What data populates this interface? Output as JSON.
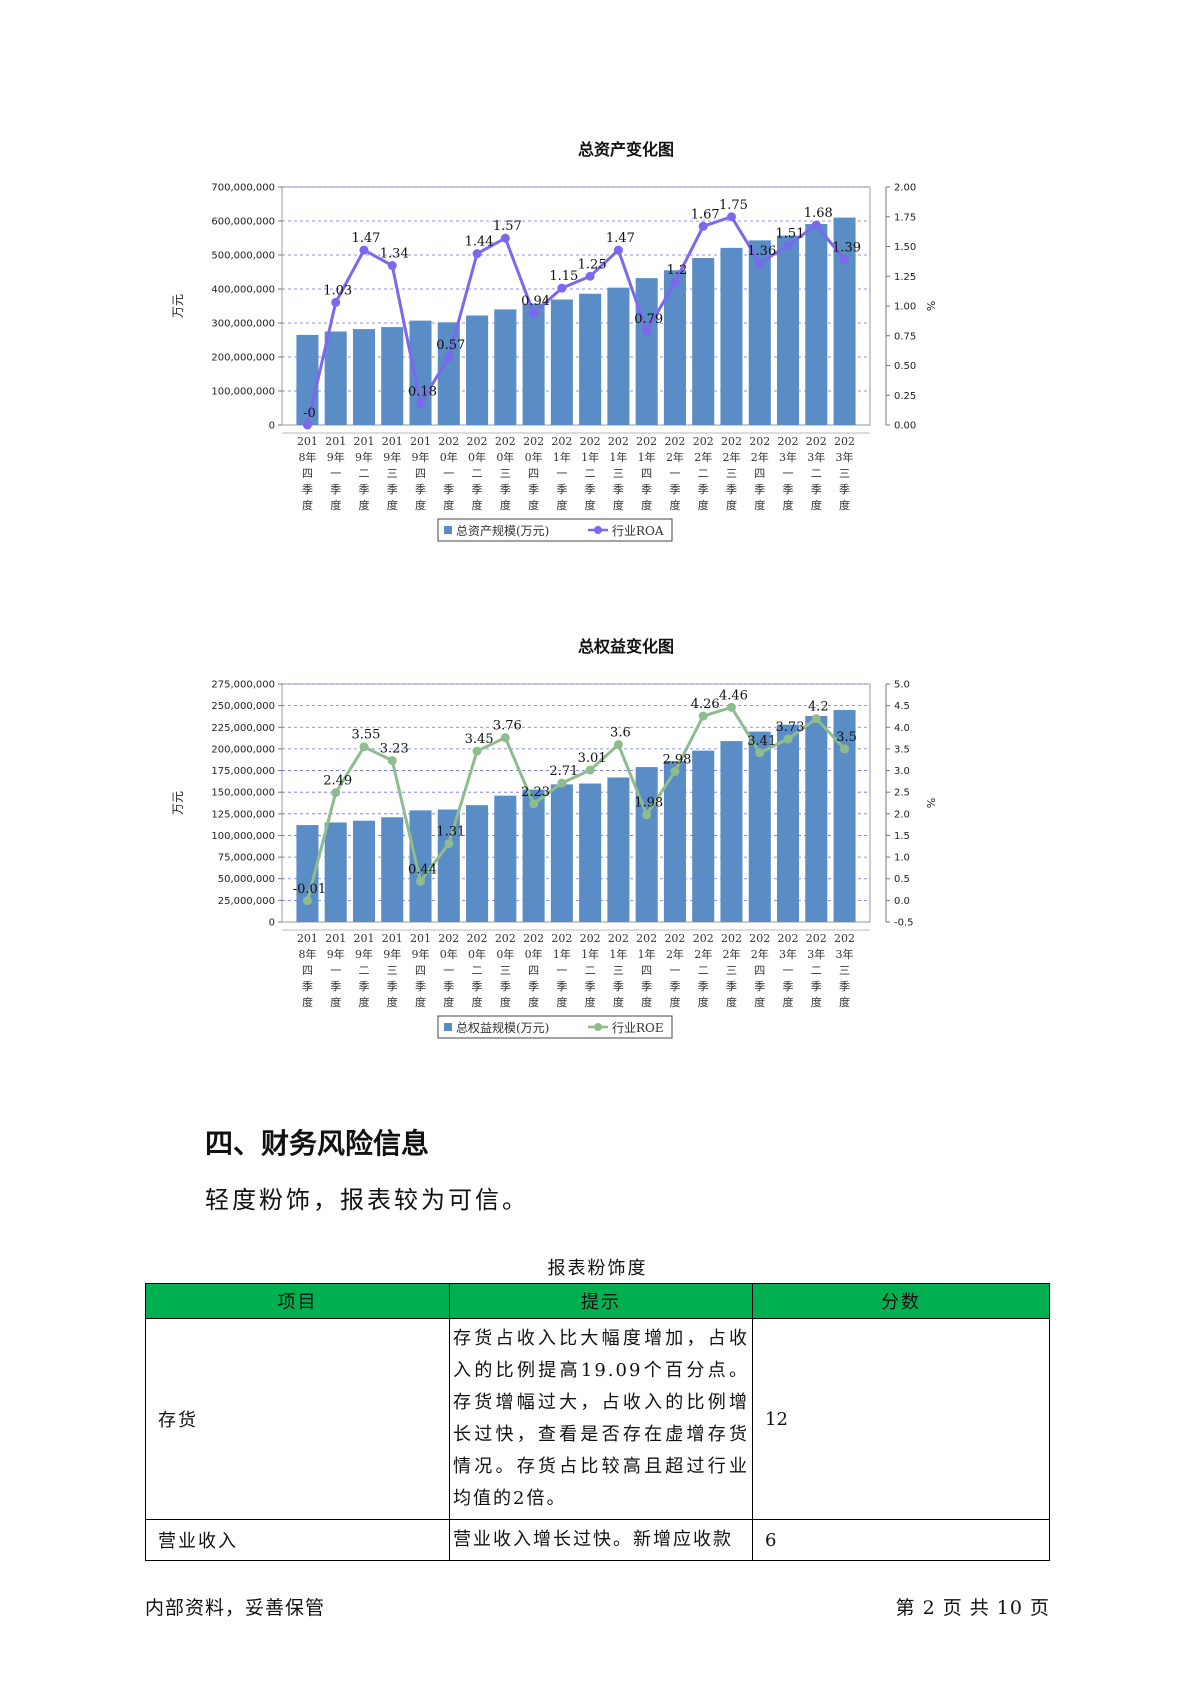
{
  "chart_data": [
    {
      "type": "bar",
      "title": "总资产变化图",
      "ylabel": "万元",
      "y2label": "%",
      "ylim": [
        0,
        700000000
      ],
      "y2lim": [
        0,
        2
      ],
      "y_ticks": [
        "0",
        "100,000,000",
        "200,000,000",
        "300,000,000",
        "400,000,000",
        "500,000,000",
        "600,000,000",
        "700,000,000"
      ],
      "y2_ticks": [
        "0.00",
        "0.25",
        "0.50",
        "0.75",
        "1.00",
        "1.25",
        "1.50",
        "1.75",
        "2.00"
      ],
      "categories": [
        "2018年四季度",
        "2019年一季度",
        "2019年二季度",
        "2019年三季度",
        "2019年四季度",
        "2020年一季度",
        "2020年二季度",
        "2020年三季度",
        "2020年四季度",
        "2021年一季度",
        "2021年二季度",
        "2021年三季度",
        "2021年四季度",
        "2022年一季度",
        "2022年二季度",
        "2022年三季度",
        "2022年四季度",
        "2023年一季度",
        "2023年二季度",
        "2023年三季度"
      ],
      "grid": true,
      "legend_placement": "bottom",
      "series": [
        {
          "name": "总资产规模(万元)",
          "type": "bar",
          "axis": "left",
          "color": "#5a8cc5",
          "values": [
            265000000,
            275000000,
            282000000,
            288000000,
            307000000,
            302000000,
            322000000,
            340000000,
            357000000,
            369000000,
            386000000,
            404000000,
            432000000,
            455000000,
            491000000,
            521000000,
            543000000,
            557000000,
            591000000,
            610000000
          ]
        },
        {
          "name": "行业ROA",
          "type": "line",
          "axis": "right",
          "color": "#7b68ee",
          "values": [
            0,
            1.03,
            1.47,
            1.34,
            0.18,
            0.57,
            1.44,
            1.57,
            0.94,
            1.15,
            1.25,
            1.47,
            0.79,
            1.2,
            1.67,
            1.75,
            1.36,
            1.51,
            1.68,
            1.39
          ],
          "labels": [
            "-0",
            "1.03",
            "1.47",
            "1.34",
            "0.18",
            "0.57",
            "1.44",
            "1.57",
            "0.94",
            "1.15",
            "1.25",
            "1.47",
            "0.79",
            "1.2",
            "1.67",
            "1.75",
            "1.36",
            "1.51",
            "1.68",
            "1.39"
          ]
        }
      ]
    },
    {
      "type": "bar",
      "title": "总权益变化图",
      "ylabel": "万元",
      "y2label": "%",
      "ylim": [
        0,
        275000000
      ],
      "y2lim": [
        -0.5,
        5
      ],
      "y_ticks": [
        "0",
        "25,000,000",
        "50,000,000",
        "75,000,000",
        "100,000,000",
        "125,000,000",
        "150,000,000",
        "175,000,000",
        "200,000,000",
        "225,000,000",
        "250,000,000",
        "275,000,000"
      ],
      "y2_ticks": [
        "-0.5",
        "0.0",
        "0.5",
        "1.0",
        "1.5",
        "2.0",
        "2.5",
        "3.0",
        "3.5",
        "4.0",
        "4.5",
        "5.0"
      ],
      "categories": [
        "2018年四季度",
        "2019年一季度",
        "2019年二季度",
        "2019年三季度",
        "2019年四季度",
        "2020年一季度",
        "2020年二季度",
        "2020年三季度",
        "2020年四季度",
        "2021年一季度",
        "2021年二季度",
        "2021年三季度",
        "2021年四季度",
        "2022年一季度",
        "2022年二季度",
        "2022年三季度",
        "2022年四季度",
        "2023年一季度",
        "2023年二季度",
        "2023年三季度"
      ],
      "grid": true,
      "legend_placement": "bottom",
      "series": [
        {
          "name": "总权益规模(万元)",
          "type": "bar",
          "axis": "left",
          "color": "#5a8cc5",
          "values": [
            112000000,
            115000000,
            117000000,
            121000000,
            129000000,
            130000000,
            135000000,
            146000000,
            153000000,
            159000000,
            160000000,
            167000000,
            179000000,
            186000000,
            198000000,
            209000000,
            220000000,
            228000000,
            238000000,
            245000000
          ]
        },
        {
          "name": "行业ROE",
          "type": "line",
          "axis": "right",
          "color": "#8fbc8f",
          "values": [
            -0.01,
            2.49,
            3.55,
            3.23,
            0.44,
            1.31,
            3.45,
            3.76,
            2.23,
            2.71,
            3.01,
            3.6,
            1.98,
            2.98,
            4.26,
            4.46,
            3.41,
            3.73,
            4.2,
            3.5
          ],
          "labels": [
            "-0.01",
            "2.49",
            "3.55",
            "3.23",
            "0.44",
            "1.31",
            "3.45",
            "3.76",
            "2.23",
            "2.71",
            "3.01",
            "3.6",
            "1.98",
            "2.98",
            "4.26",
            "4.46",
            "3.41",
            "3.73",
            "4.2",
            "3.5"
          ]
        }
      ]
    }
  ],
  "section": {
    "title": "四、财务风险信息",
    "summary": "轻度粉饰，报表较为可信。"
  },
  "risk_table": {
    "caption": "报表粉饰度",
    "headers": [
      "项目",
      "提示",
      "分数"
    ],
    "rows": [
      {
        "item": "存货",
        "tip": "存货占收入比大幅度增加，占收入的比例提高19.09个百分点。存货增幅过大，占收入的比例增长过快，查看是否存在虚增存货情况。存货占比较高且超过行业均值的2倍。",
        "score": "12"
      },
      {
        "item": "营业收入",
        "tip": "营业收入增长过快。新增应收款",
        "score": "6"
      }
    ]
  },
  "footer": {
    "left": "内部资料，妥善保管",
    "right": "第 2 页   共 10 页"
  }
}
